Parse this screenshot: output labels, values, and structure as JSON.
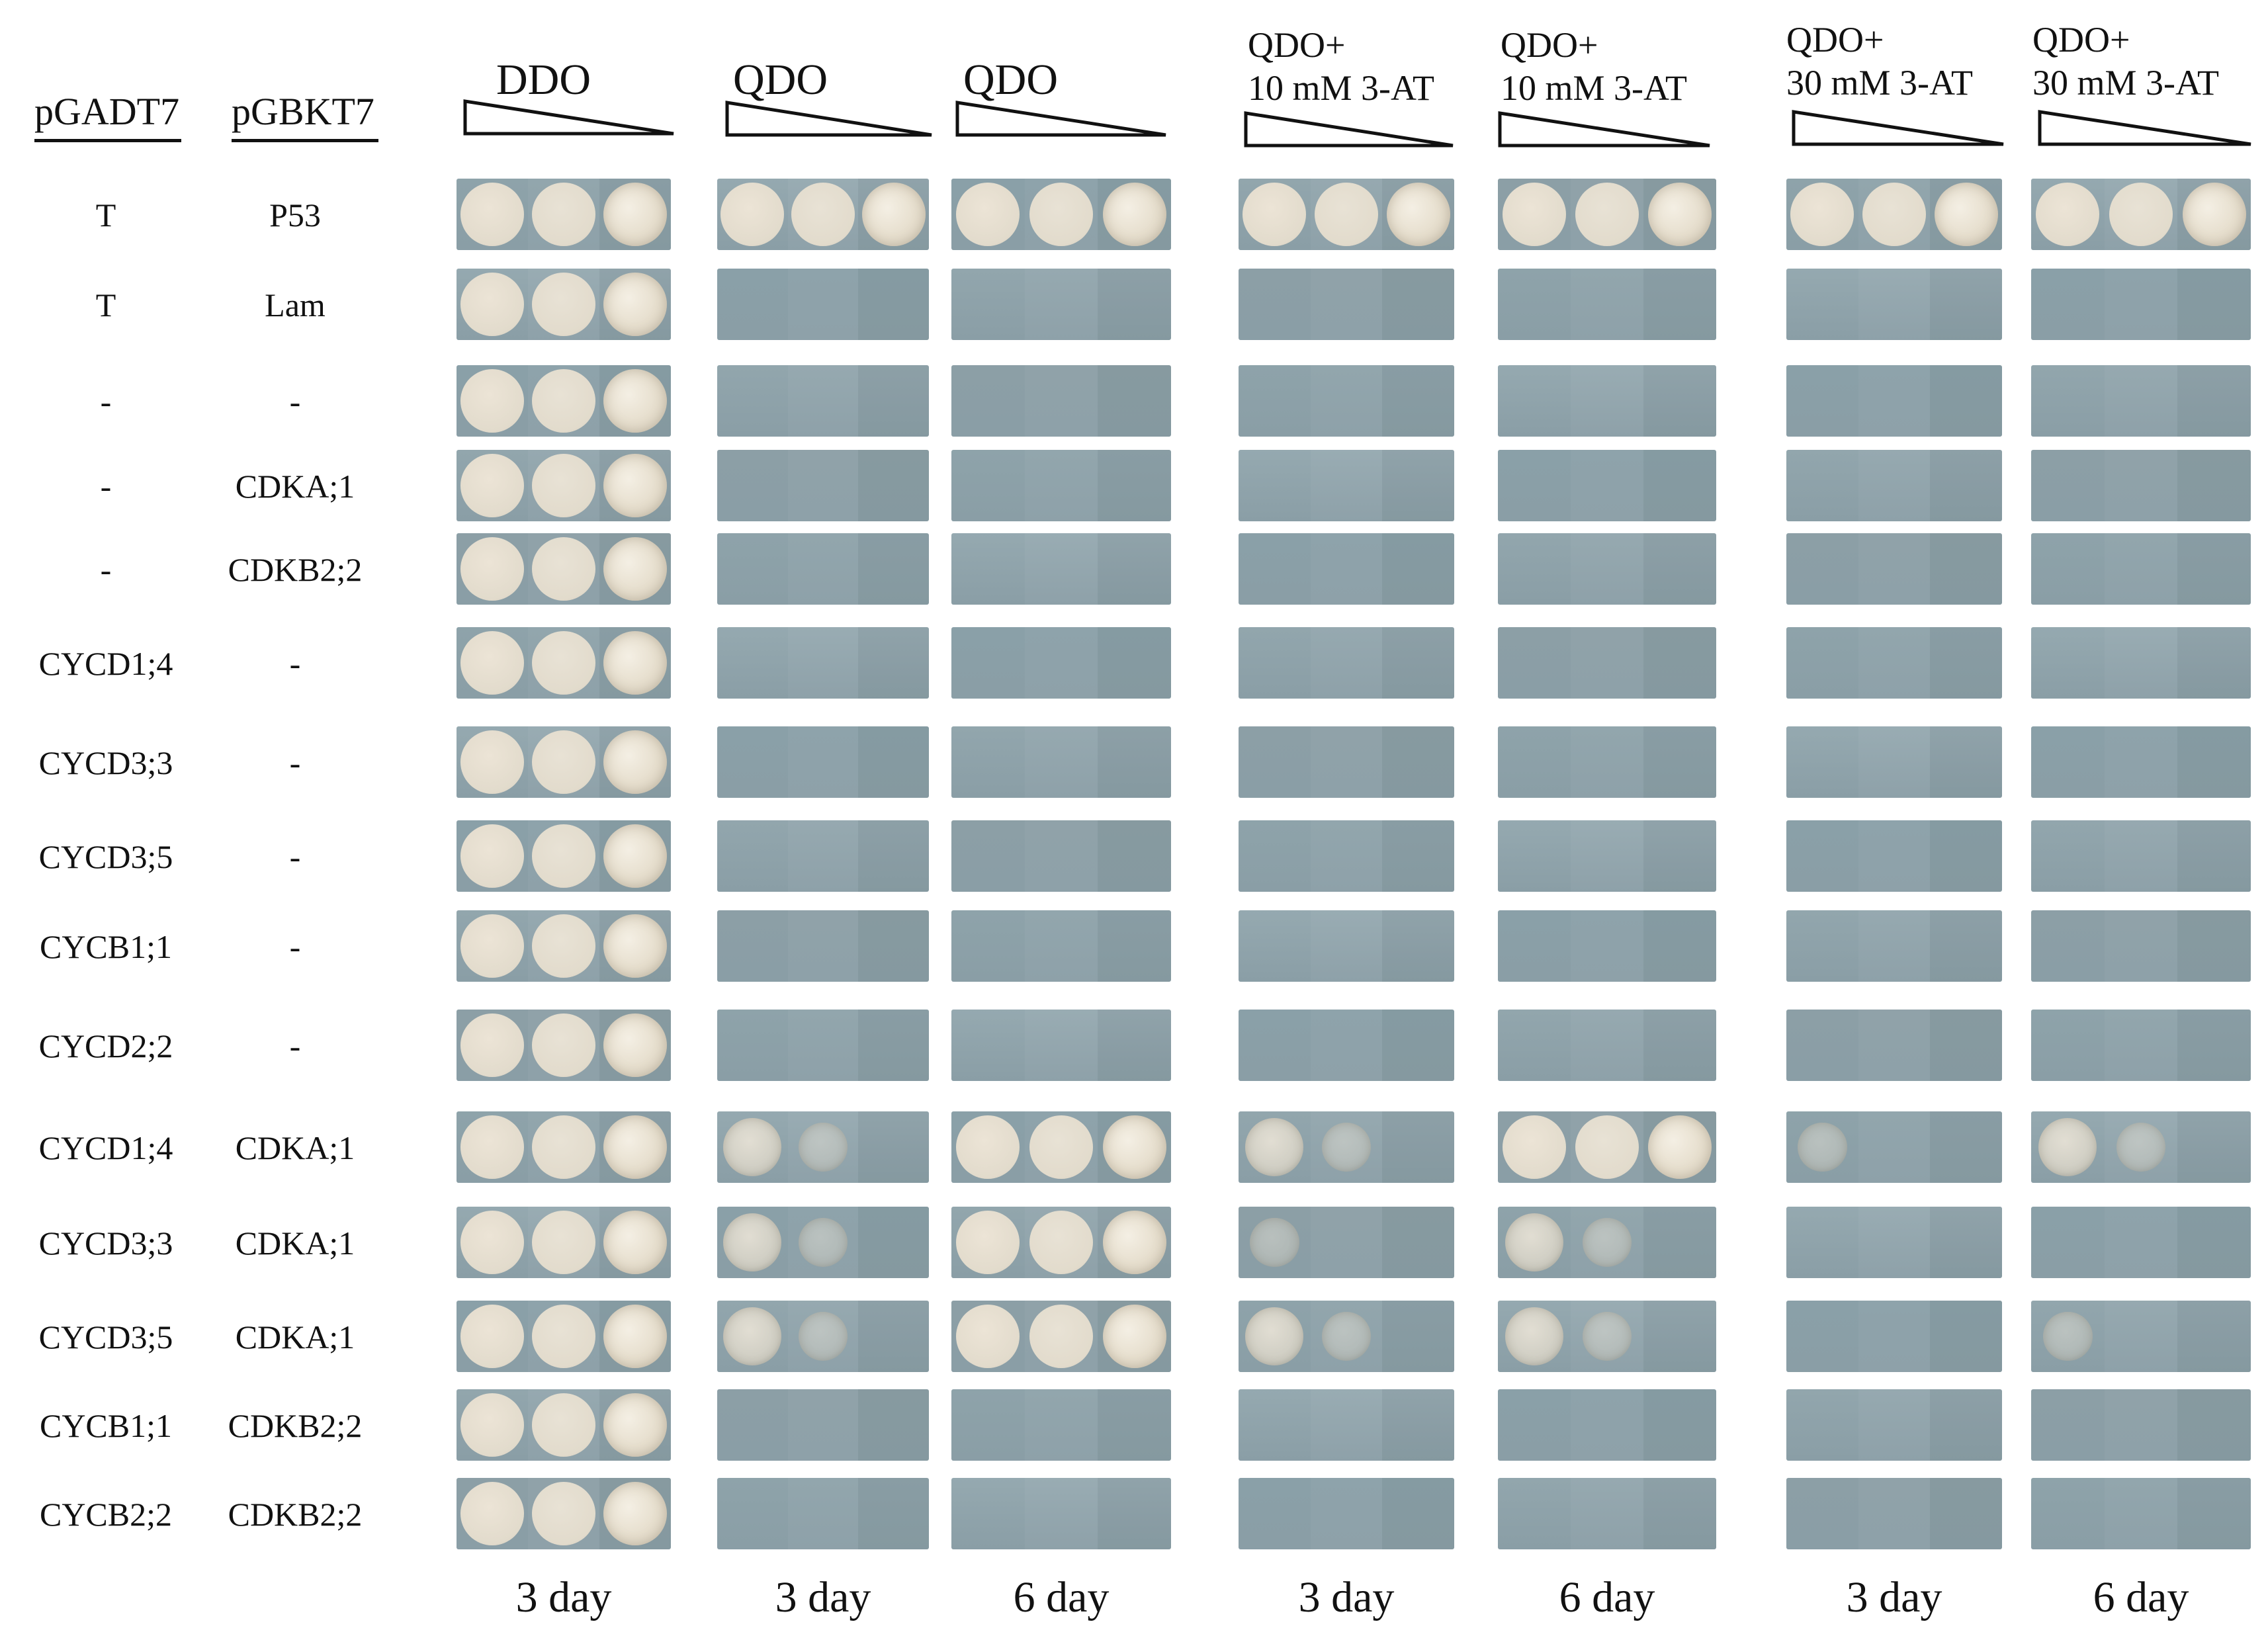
{
  "headers": {
    "pgadt7": "pGADT7",
    "pgbkt7": "pGBKT7"
  },
  "columns": [
    {
      "title_line1": "DDO",
      "title_line2": "",
      "day": "3 day"
    },
    {
      "title_line1": "QDO",
      "title_line2": "",
      "day": "3 day"
    },
    {
      "title_line1": "QDO",
      "title_line2": "",
      "day": "6 day"
    },
    {
      "title_line1": "QDO+",
      "title_line2": "10 mM 3-AT",
      "day": "3 day"
    },
    {
      "title_line1": "QDO+",
      "title_line2": "10 mM 3-AT",
      "day": "6 day"
    },
    {
      "title_line1": "QDO+",
      "title_line2": "30 mM 3-AT",
      "day": "3 day"
    },
    {
      "title_line1": "QDO+",
      "title_line2": "30 mM 3-AT",
      "day": "6 day"
    }
  ],
  "rows": [
    {
      "pgadt7": "T",
      "pgbkt7": "P53",
      "growth": [
        3,
        3,
        3,
        3,
        3,
        3,
        3
      ]
    },
    {
      "pgadt7": "T",
      "pgbkt7": "Lam",
      "growth": [
        3,
        0,
        0,
        0,
        0,
        0,
        0
      ]
    },
    {
      "pgadt7": "-",
      "pgbkt7": "-",
      "growth": [
        3,
        0,
        0,
        0,
        0,
        0,
        0
      ]
    },
    {
      "pgadt7": "-",
      "pgbkt7": "CDKA;1",
      "growth": [
        3,
        0,
        0,
        0,
        0,
        0,
        0
      ]
    },
    {
      "pgadt7": "-",
      "pgbkt7": "CDKB2;2",
      "growth": [
        3,
        0,
        0,
        0,
        0,
        0,
        0
      ]
    },
    {
      "pgadt7": "CYCD1;4",
      "pgbkt7": "-",
      "growth": [
        3,
        0,
        0,
        0,
        0,
        0,
        0
      ]
    },
    {
      "pgadt7": "CYCD3;3",
      "pgbkt7": "-",
      "growth": [
        3,
        0,
        0,
        0,
        0,
        0,
        0
      ]
    },
    {
      "pgadt7": "CYCD3;5",
      "pgbkt7": "-",
      "growth": [
        3,
        0,
        0,
        0,
        0,
        0,
        0
      ]
    },
    {
      "pgadt7": "CYCB1;1",
      "pgbkt7": "-",
      "growth": [
        3,
        0,
        0,
        0,
        0,
        0,
        0
      ]
    },
    {
      "pgadt7": "CYCD2;2",
      "pgbkt7": "-",
      "growth": [
        3,
        0,
        0,
        0,
        0,
        0,
        0
      ]
    },
    {
      "pgadt7": "CYCD1;4",
      "pgbkt7": "CDKA;1",
      "growth": [
        3,
        2,
        3,
        2,
        3,
        1,
        2
      ]
    },
    {
      "pgadt7": "CYCD3;3",
      "pgbkt7": "CDKA;1",
      "growth": [
        3,
        2,
        3,
        1,
        2,
        0,
        0
      ]
    },
    {
      "pgadt7": "CYCD3;5",
      "pgbkt7": "CDKA;1",
      "growth": [
        3,
        2,
        3,
        2,
        2,
        0,
        1
      ]
    },
    {
      "pgadt7": "CYCB1;1",
      "pgbkt7": "CDKB2;2",
      "growth": [
        3,
        0,
        0,
        0,
        0,
        0,
        0
      ]
    },
    {
      "pgadt7": "CYCB2;2",
      "pgbkt7": "CDKB2;2",
      "growth": [
        3,
        0,
        0,
        0,
        0,
        0,
        0
      ]
    }
  ],
  "colors": {
    "panel_bg": "#8a9ea6",
    "panel_bg_light": "#a9bcc3",
    "colony": "#e9e3d6",
    "colony_edge": "#cfc7b6",
    "text": "#111111"
  }
}
